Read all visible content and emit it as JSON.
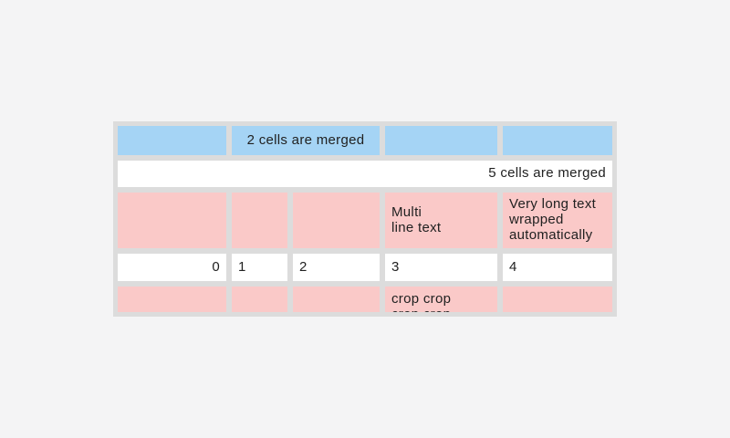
{
  "colors": {
    "page_bg": "#f4f4f5",
    "table_bg": "#dcdcdc",
    "blue_cell": "#a5d4f5",
    "pink_cell": "#fac9c8",
    "white_cell": "#ffffff",
    "text": "#212121"
  },
  "table": {
    "rows": [
      {
        "cells": [
          {
            "text": ""
          },
          {
            "text": "2 cells are merged"
          },
          {
            "text": ""
          },
          {
            "text": ""
          }
        ]
      },
      {
        "cells": [
          {
            "text": "5 cells are merged"
          }
        ]
      },
      {
        "cells": [
          {
            "text": ""
          },
          {
            "text": ""
          },
          {
            "text": ""
          },
          {
            "text": "Multi\nline text"
          },
          {
            "text": "Very long text wrapped automatically"
          }
        ]
      },
      {
        "cells": [
          {
            "text": "0"
          },
          {
            "text": "1"
          },
          {
            "text": "2"
          },
          {
            "text": "3"
          },
          {
            "text": "4"
          }
        ]
      },
      {
        "cells": [
          {
            "text": ""
          },
          {
            "text": ""
          },
          {
            "text": ""
          },
          {
            "text": "crop crop\ncrop crop"
          },
          {
            "text": ""
          }
        ]
      }
    ]
  }
}
